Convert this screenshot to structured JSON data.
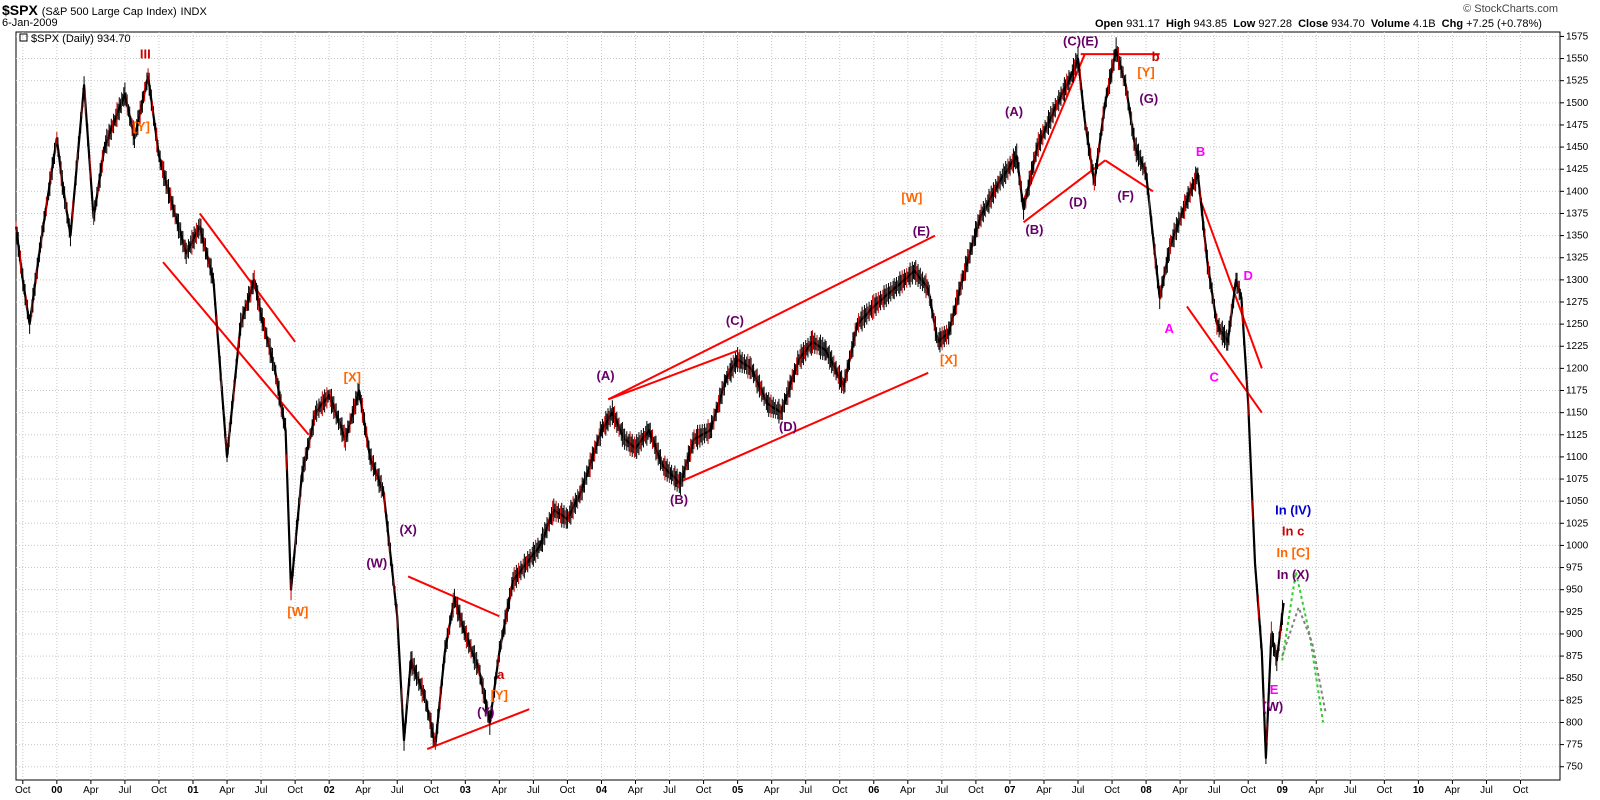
{
  "header": {
    "symbol": "$SPX",
    "description": "(S&P 500 Large Cap Index)",
    "exchange": "INDX",
    "date": "6-Jan-2009",
    "open_label": "Open",
    "open": "931.17",
    "high_label": "High",
    "high": "943.85",
    "low_label": "Low",
    "low": "927.28",
    "close_label": "Close",
    "close": "934.70",
    "volume_label": "Volume",
    "volume": "4.1B",
    "chg_label": "Chg",
    "chg": "+7.25 (+0.78%)",
    "brand": "© StockCharts.com",
    "legend": "$SPX (Daily) 934.70"
  },
  "colors": {
    "price": "#000000",
    "down_bar": "#cc0000",
    "trendline": "#ff0000",
    "wave_red": "#cc0000",
    "wave_orange": "#ff6600",
    "wave_purple": "#660066",
    "wave_magenta": "#ff00ff",
    "wave_blue": "#0000cc",
    "proj_green": "#33cc33",
    "proj_gray": "#808080",
    "grid": "#c8c8c8"
  },
  "chart_data": {
    "type": "line",
    "title": "$SPX (Daily) 934.70",
    "y_axis_position": "right",
    "grid": true,
    "yticks": [
      750,
      775,
      800,
      825,
      850,
      875,
      900,
      925,
      950,
      975,
      1000,
      1025,
      1050,
      1075,
      1100,
      1125,
      1150,
      1175,
      1200,
      1225,
      1250,
      1275,
      1300,
      1325,
      1350,
      1375,
      1400,
      1425,
      1450,
      1475,
      1500,
      1525,
      1550,
      1575
    ],
    "ylim": [
      735,
      1580
    ],
    "xlim": [
      1999.7,
      2011.04
    ],
    "xticks": [
      {
        "t": 1999.75,
        "label": "Oct",
        "bold": false
      },
      {
        "t": 2000.0,
        "label": "00",
        "bold": true
      },
      {
        "t": 2000.25,
        "label": "Apr",
        "bold": false
      },
      {
        "t": 2000.5,
        "label": "Jul",
        "bold": false
      },
      {
        "t": 2000.75,
        "label": "Oct",
        "bold": false
      },
      {
        "t": 2001.0,
        "label": "01",
        "bold": true
      },
      {
        "t": 2001.25,
        "label": "Apr",
        "bold": false
      },
      {
        "t": 2001.5,
        "label": "Jul",
        "bold": false
      },
      {
        "t": 2001.75,
        "label": "Oct",
        "bold": false
      },
      {
        "t": 2002.0,
        "label": "02",
        "bold": true
      },
      {
        "t": 2002.25,
        "label": "Apr",
        "bold": false
      },
      {
        "t": 2002.5,
        "label": "Jul",
        "bold": false
      },
      {
        "t": 2002.75,
        "label": "Oct",
        "bold": false
      },
      {
        "t": 2003.0,
        "label": "03",
        "bold": true
      },
      {
        "t": 2003.25,
        "label": "Apr",
        "bold": false
      },
      {
        "t": 2003.5,
        "label": "Jul",
        "bold": false
      },
      {
        "t": 2003.75,
        "label": "Oct",
        "bold": false
      },
      {
        "t": 2004.0,
        "label": "04",
        "bold": true
      },
      {
        "t": 2004.25,
        "label": "Apr",
        "bold": false
      },
      {
        "t": 2004.5,
        "label": "Jul",
        "bold": false
      },
      {
        "t": 2004.75,
        "label": "Oct",
        "bold": false
      },
      {
        "t": 2005.0,
        "label": "05",
        "bold": true
      },
      {
        "t": 2005.25,
        "label": "Apr",
        "bold": false
      },
      {
        "t": 2005.5,
        "label": "Jul",
        "bold": false
      },
      {
        "t": 2005.75,
        "label": "Oct",
        "bold": false
      },
      {
        "t": 2006.0,
        "label": "06",
        "bold": true
      },
      {
        "t": 2006.25,
        "label": "Apr",
        "bold": false
      },
      {
        "t": 2006.5,
        "label": "Jul",
        "bold": false
      },
      {
        "t": 2006.75,
        "label": "Oct",
        "bold": false
      },
      {
        "t": 2007.0,
        "label": "07",
        "bold": true
      },
      {
        "t": 2007.25,
        "label": "Apr",
        "bold": false
      },
      {
        "t": 2007.5,
        "label": "Jul",
        "bold": false
      },
      {
        "t": 2007.75,
        "label": "Oct",
        "bold": false
      },
      {
        "t": 2008.0,
        "label": "08",
        "bold": true
      },
      {
        "t": 2008.25,
        "label": "Apr",
        "bold": false
      },
      {
        "t": 2008.5,
        "label": "Jul",
        "bold": false
      },
      {
        "t": 2008.75,
        "label": "Oct",
        "bold": false
      },
      {
        "t": 2009.0,
        "label": "09",
        "bold": true
      },
      {
        "t": 2009.25,
        "label": "Apr",
        "bold": false
      },
      {
        "t": 2009.5,
        "label": "Jul",
        "bold": false
      },
      {
        "t": 2009.75,
        "label": "Oct",
        "bold": false
      },
      {
        "t": 2010.0,
        "label": "10",
        "bold": true
      },
      {
        "t": 2010.25,
        "label": "Apr",
        "bold": false
      },
      {
        "t": 2010.5,
        "label": "Jul",
        "bold": false
      },
      {
        "t": 2010.75,
        "label": "Oct",
        "bold": false
      }
    ],
    "series": [
      {
        "name": "$SPX (Daily)",
        "points": [
          [
            1999.7,
            1360
          ],
          [
            1999.75,
            1300
          ],
          [
            1999.8,
            1250
          ],
          [
            1999.88,
            1340
          ],
          [
            2000.0,
            1460
          ],
          [
            2000.04,
            1410
          ],
          [
            2000.1,
            1350
          ],
          [
            2000.2,
            1520
          ],
          [
            2000.27,
            1370
          ],
          [
            2000.35,
            1450
          ],
          [
            2000.5,
            1510
          ],
          [
            2000.57,
            1460
          ],
          [
            2000.67,
            1530
          ],
          [
            2000.75,
            1440
          ],
          [
            2000.82,
            1400
          ],
          [
            2000.95,
            1330
          ],
          [
            2001.05,
            1360
          ],
          [
            2001.15,
            1300
          ],
          [
            2001.25,
            1100
          ],
          [
            2001.35,
            1250
          ],
          [
            2001.45,
            1300
          ],
          [
            2001.5,
            1260
          ],
          [
            2001.6,
            1200
          ],
          [
            2001.68,
            1130
          ],
          [
            2001.72,
            950
          ],
          [
            2001.8,
            1080
          ],
          [
            2001.9,
            1150
          ],
          [
            2002.0,
            1170
          ],
          [
            2002.12,
            1120
          ],
          [
            2002.22,
            1175
          ],
          [
            2002.3,
            1100
          ],
          [
            2002.4,
            1060
          ],
          [
            2002.5,
            920
          ],
          [
            2002.55,
            780
          ],
          [
            2002.6,
            870
          ],
          [
            2002.7,
            830
          ],
          [
            2002.78,
            775
          ],
          [
            2002.85,
            880
          ],
          [
            2002.92,
            940
          ],
          [
            2003.0,
            900
          ],
          [
            2003.1,
            860
          ],
          [
            2003.18,
            800
          ],
          [
            2003.25,
            880
          ],
          [
            2003.35,
            960
          ],
          [
            2003.45,
            980
          ],
          [
            2003.55,
            1000
          ],
          [
            2003.65,
            1040
          ],
          [
            2003.75,
            1030
          ],
          [
            2003.85,
            1060
          ],
          [
            2004.0,
            1130
          ],
          [
            2004.08,
            1150
          ],
          [
            2004.17,
            1120
          ],
          [
            2004.25,
            1110
          ],
          [
            2004.35,
            1130
          ],
          [
            2004.45,
            1090
          ],
          [
            2004.58,
            1070
          ],
          [
            2004.68,
            1120
          ],
          [
            2004.8,
            1130
          ],
          [
            2004.92,
            1190
          ],
          [
            2005.0,
            1210
          ],
          [
            2005.1,
            1200
          ],
          [
            2005.22,
            1160
          ],
          [
            2005.32,
            1150
          ],
          [
            2005.45,
            1210
          ],
          [
            2005.55,
            1230
          ],
          [
            2005.65,
            1220
          ],
          [
            2005.78,
            1180
          ],
          [
            2005.88,
            1250
          ],
          [
            2006.0,
            1270
          ],
          [
            2006.15,
            1290
          ],
          [
            2006.3,
            1310
          ],
          [
            2006.4,
            1290
          ],
          [
            2006.47,
            1230
          ],
          [
            2006.55,
            1240
          ],
          [
            2006.65,
            1300
          ],
          [
            2006.78,
            1370
          ],
          [
            2006.92,
            1410
          ],
          [
            2007.05,
            1440
          ],
          [
            2007.1,
            1380
          ],
          [
            2007.2,
            1450
          ],
          [
            2007.35,
            1500
          ],
          [
            2007.45,
            1530
          ],
          [
            2007.5,
            1550
          ],
          [
            2007.55,
            1480
          ],
          [
            2007.62,
            1410
          ],
          [
            2007.7,
            1500
          ],
          [
            2007.78,
            1560
          ],
          [
            2007.85,
            1520
          ],
          [
            2007.92,
            1450
          ],
          [
            2008.0,
            1420
          ],
          [
            2008.05,
            1350
          ],
          [
            2008.1,
            1280
          ],
          [
            2008.18,
            1340
          ],
          [
            2008.3,
            1390
          ],
          [
            2008.38,
            1420
          ],
          [
            2008.45,
            1320
          ],
          [
            2008.52,
            1250
          ],
          [
            2008.6,
            1230
          ],
          [
            2008.66,
            1300
          ],
          [
            2008.7,
            1280
          ],
          [
            2008.75,
            1160
          ],
          [
            2008.8,
            980
          ],
          [
            2008.85,
            880
          ],
          [
            2008.88,
            760
          ],
          [
            2008.92,
            900
          ],
          [
            2008.96,
            870
          ],
          [
            2009.01,
            935
          ]
        ]
      },
      {
        "name": "",
        "points": [
          [
            2009.0,
            870
          ],
          [
            2009.1,
            970
          ],
          [
            2009.2,
            900
          ],
          [
            2009.3,
            800
          ]
        ]
      },
      {
        "name": "",
        "points": [
          [
            2009.0,
            875
          ],
          [
            2009.12,
            930
          ],
          [
            2009.22,
            890
          ],
          [
            2009.32,
            810
          ]
        ]
      }
    ],
    "trendlines": [
      [
        [
          2000.78,
          1320
        ],
        [
          2001.85,
          1125
        ]
      ],
      [
        [
          2001.05,
          1375
        ],
        [
          2001.75,
          1230
        ]
      ],
      [
        [
          2002.58,
          965
        ],
        [
          2003.25,
          920
        ]
      ],
      [
        [
          2002.72,
          770
        ],
        [
          2003.47,
          815
        ]
      ],
      [
        [
          2004.05,
          1165
        ],
        [
          2006.45,
          1350
        ]
      ],
      [
        [
          2004.55,
          1070
        ],
        [
          2006.4,
          1195
        ]
      ],
      [
        [
          2004.05,
          1165
        ],
        [
          2005.0,
          1220
        ]
      ],
      [
        [
          2007.1,
          1390
        ],
        [
          2007.55,
          1555
        ]
      ],
      [
        [
          2007.1,
          1365
        ],
        [
          2007.7,
          1435
        ]
      ],
      [
        [
          2007.52,
          1555
        ],
        [
          2008.1,
          1555
        ]
      ],
      [
        [
          2007.7,
          1435
        ],
        [
          2008.05,
          1400
        ]
      ],
      [
        [
          2008.4,
          1390
        ],
        [
          2008.85,
          1200
        ]
      ],
      [
        [
          2008.3,
          1270
        ],
        [
          2008.85,
          1150
        ]
      ]
    ],
    "annotations": [
      {
        "text": "III",
        "t": 2000.65,
        "y": 1550,
        "color": "wave_red"
      },
      {
        "text": "[Y]",
        "t": 2000.62,
        "y": 1468,
        "color": "wave_orange"
      },
      {
        "text": "[W]",
        "t": 2001.77,
        "y": 920,
        "color": "wave_orange"
      },
      {
        "text": "[X]",
        "t": 2002.17,
        "y": 1185,
        "color": "wave_orange"
      },
      {
        "text": "(X)",
        "t": 2002.58,
        "y": 1013,
        "color": "wave_purple"
      },
      {
        "text": "(W)",
        "t": 2002.35,
        "y": 975,
        "color": "wave_purple"
      },
      {
        "text": "a",
        "t": 2003.26,
        "y": 849,
        "color": "wave_red"
      },
      {
        "text": "[Y]",
        "t": 2003.25,
        "y": 826,
        "color": "wave_orange"
      },
      {
        "text": "(Y)",
        "t": 2003.15,
        "y": 807,
        "color": "wave_purple"
      },
      {
        "text": "(A)",
        "t": 2004.03,
        "y": 1187,
        "color": "wave_purple"
      },
      {
        "text": "(B)",
        "t": 2004.57,
        "y": 1047,
        "color": "wave_purple"
      },
      {
        "text": "(C)",
        "t": 2004.98,
        "y": 1249,
        "color": "wave_purple"
      },
      {
        "text": "(D)",
        "t": 2005.37,
        "y": 1129,
        "color": "wave_purple"
      },
      {
        "text": "[W]",
        "t": 2006.28,
        "y": 1388,
        "color": "wave_orange"
      },
      {
        "text": "(E)",
        "t": 2006.35,
        "y": 1350,
        "color": "wave_purple"
      },
      {
        "text": "[X]",
        "t": 2006.55,
        "y": 1205,
        "color": "wave_orange"
      },
      {
        "text": "(A)",
        "t": 2007.03,
        "y": 1485,
        "color": "wave_purple"
      },
      {
        "text": "(B)",
        "t": 2007.18,
        "y": 1352,
        "color": "wave_purple"
      },
      {
        "text": "(C)(E)",
        "t": 2007.52,
        "y": 1565,
        "color": "wave_purple"
      },
      {
        "text": "b",
        "t": 2008.07,
        "y": 1547,
        "color": "wave_red"
      },
      {
        "text": "(D)",
        "t": 2007.5,
        "y": 1383,
        "color": "wave_purple"
      },
      {
        "text": "(F)",
        "t": 2007.85,
        "y": 1390,
        "color": "wave_purple"
      },
      {
        "text": "[Y]",
        "t": 2008.0,
        "y": 1530,
        "color": "wave_orange"
      },
      {
        "text": "(G)",
        "t": 2008.02,
        "y": 1500,
        "color": "wave_purple"
      },
      {
        "text": "B",
        "t": 2008.4,
        "y": 1440,
        "color": "wave_magenta"
      },
      {
        "text": "A",
        "t": 2008.17,
        "y": 1240,
        "color": "wave_magenta"
      },
      {
        "text": "D",
        "t": 2008.75,
        "y": 1300,
        "color": "wave_magenta"
      },
      {
        "text": "C",
        "t": 2008.5,
        "y": 1185,
        "color": "wave_magenta"
      },
      {
        "text": "In (IV)",
        "t": 2009.08,
        "y": 1035,
        "color": "wave_blue"
      },
      {
        "text": "In c",
        "t": 2009.08,
        "y": 1011,
        "color": "wave_red"
      },
      {
        "text": "In [C]",
        "t": 2009.08,
        "y": 987,
        "color": "wave_orange"
      },
      {
        "text": "In (X)",
        "t": 2009.08,
        "y": 962,
        "color": "wave_purple"
      },
      {
        "text": "E",
        "t": 2008.94,
        "y": 832,
        "color": "wave_magenta"
      },
      {
        "text": "(W)",
        "t": 2008.93,
        "y": 813,
        "color": "wave_purple"
      }
    ]
  }
}
